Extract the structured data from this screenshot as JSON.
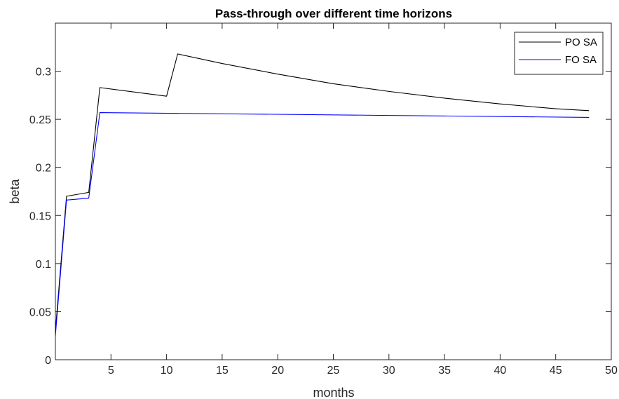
{
  "chart_data": {
    "type": "line",
    "title": "Pass-through over different time horizons",
    "xlabel": "months",
    "ylabel": "beta",
    "xlim": [
      0,
      50
    ],
    "ylim": [
      0,
      0.35
    ],
    "xticks": [
      5,
      10,
      15,
      20,
      25,
      30,
      35,
      40,
      45,
      50
    ],
    "yticks": [
      0,
      0.05,
      0.1,
      0.15,
      0.2,
      0.25,
      0.3
    ],
    "grid": false,
    "legend_position": "top-right",
    "series": [
      {
        "name": "PO SA",
        "color": "#000000",
        "x": [
          0,
          1,
          3,
          4,
          10,
          11,
          15,
          20,
          25,
          30,
          35,
          40,
          45,
          48
        ],
        "y": [
          0.03,
          0.17,
          0.174,
          0.283,
          0.274,
          0.318,
          0.308,
          0.297,
          0.287,
          0.279,
          0.272,
          0.266,
          0.261,
          0.259
        ]
      },
      {
        "name": "FO SA",
        "color": "#0000ff",
        "x": [
          0,
          1,
          3,
          4,
          48
        ],
        "y": [
          0.025,
          0.166,
          0.168,
          0.257,
          0.252
        ]
      }
    ]
  }
}
